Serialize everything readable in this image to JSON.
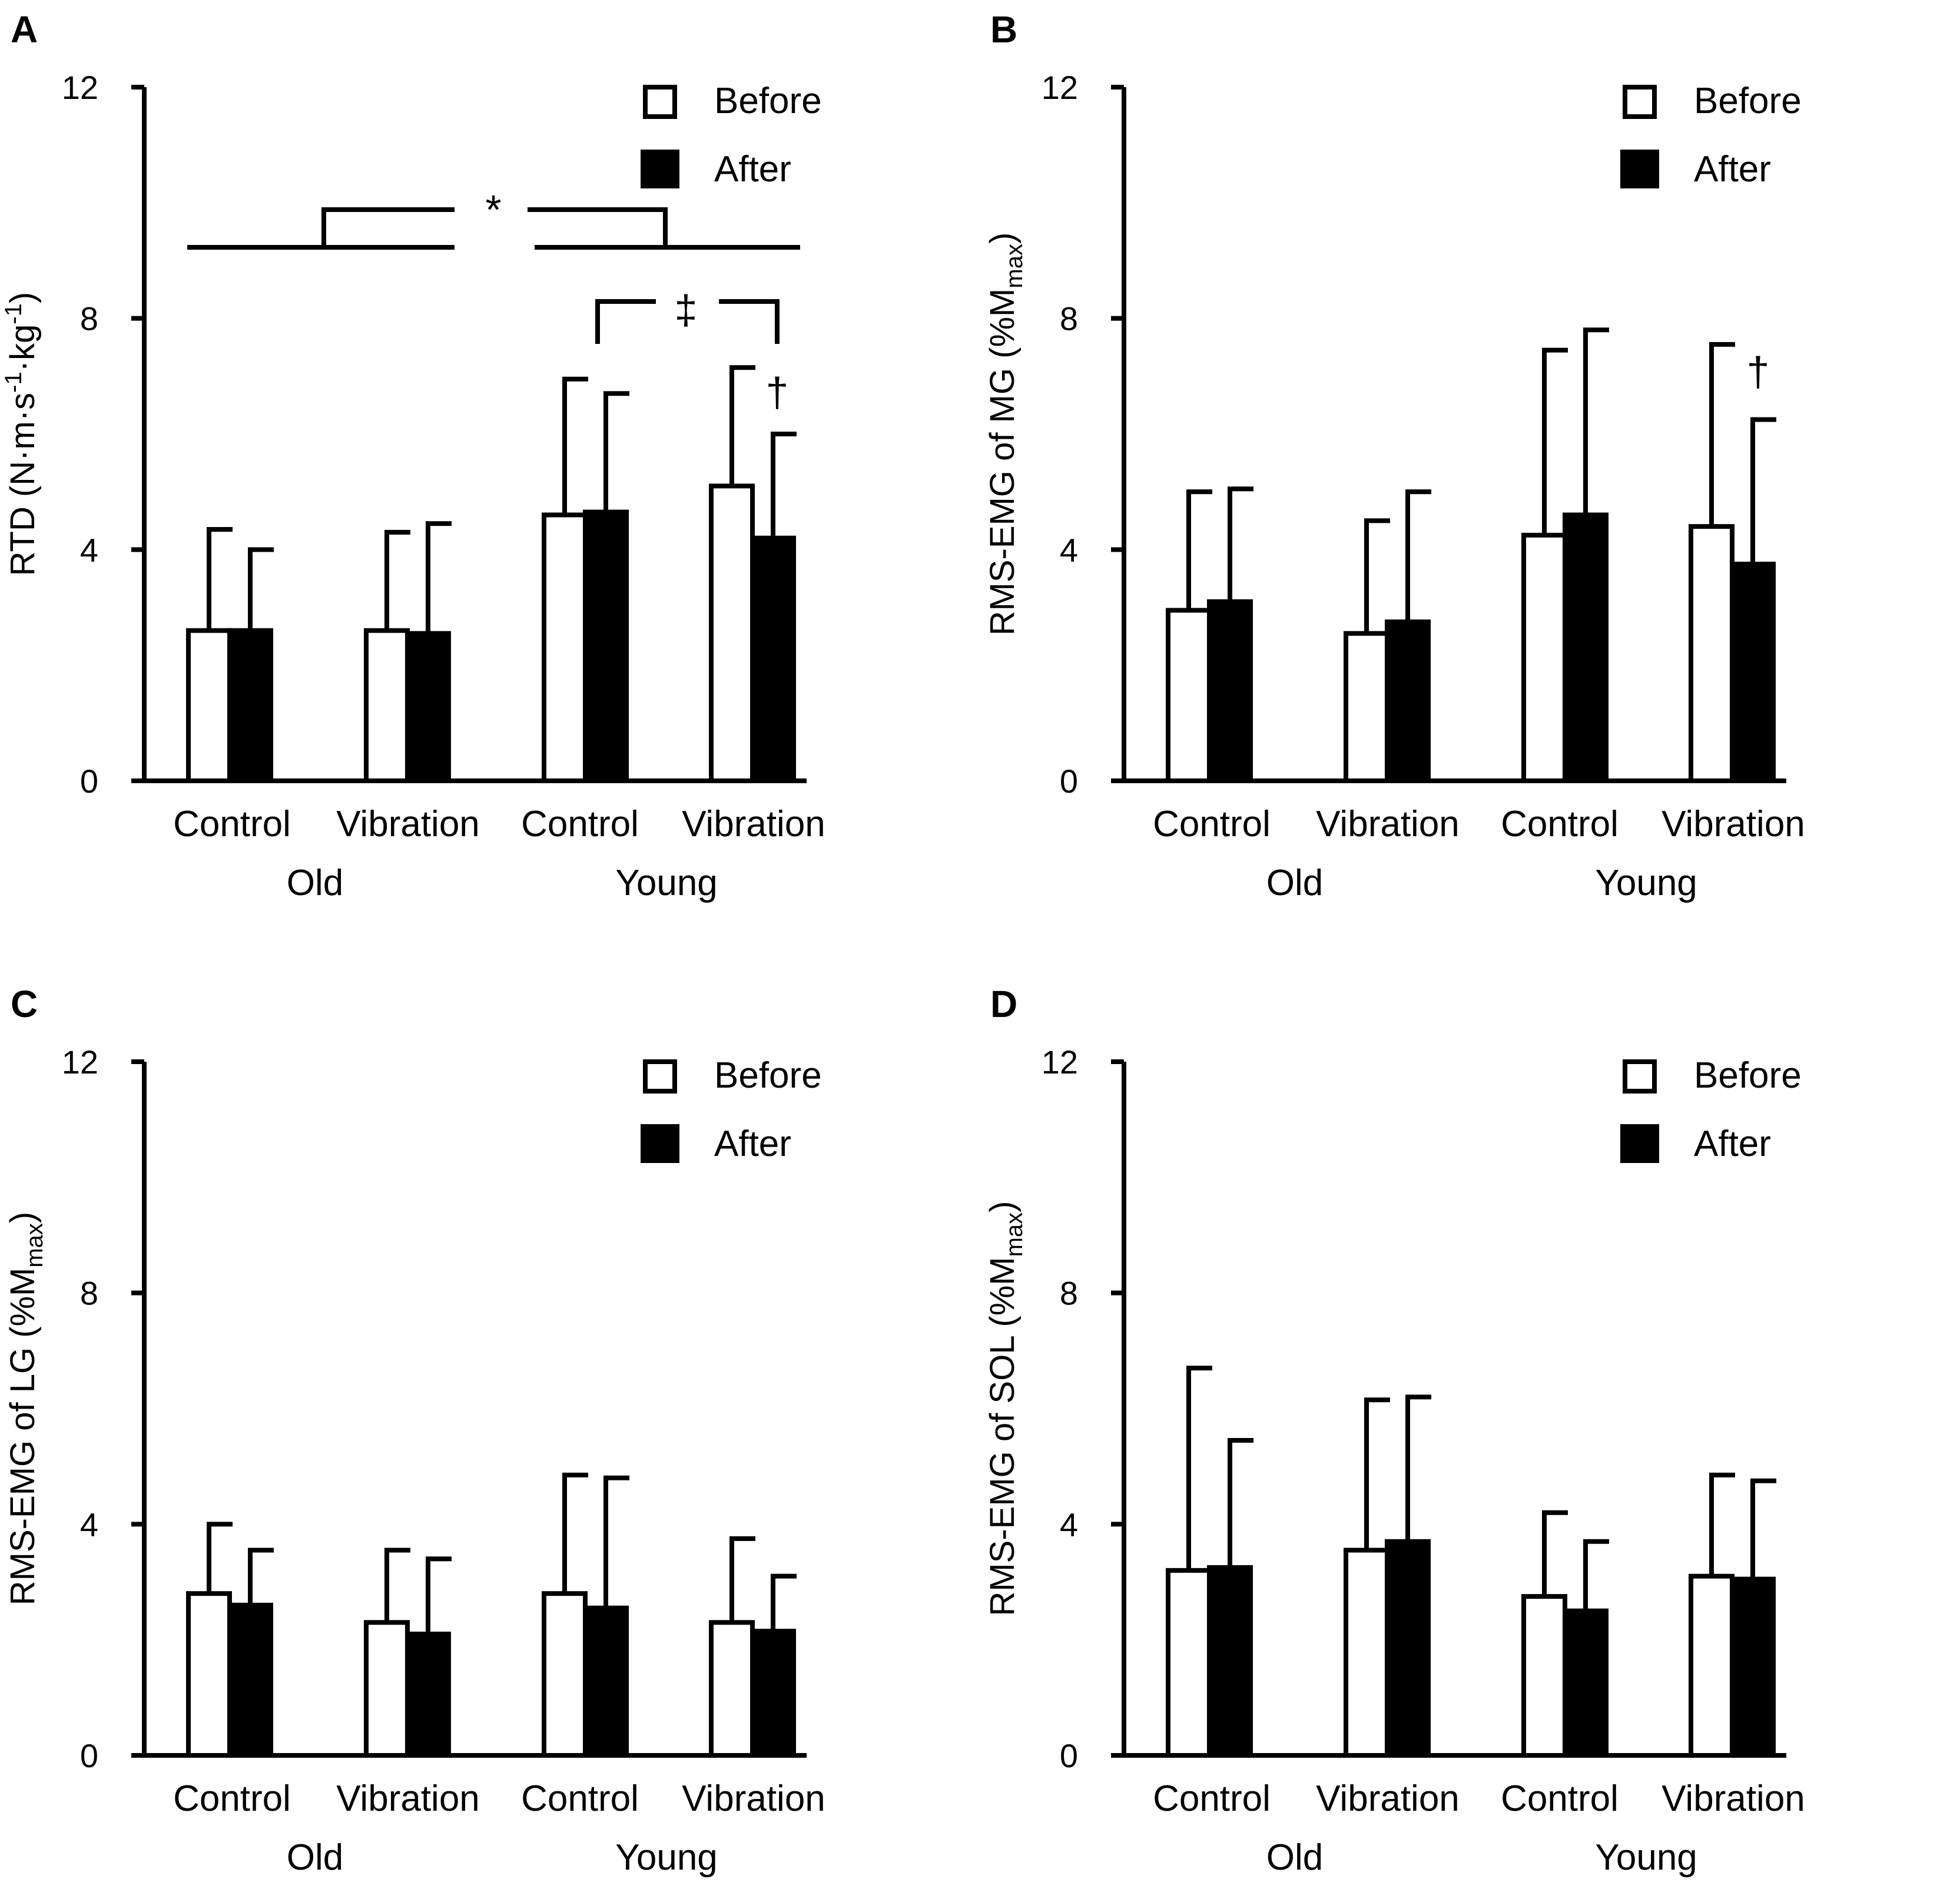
{
  "figure_title": "",
  "legend": {
    "before": "Before",
    "after": "After"
  },
  "colors": {
    "before": "#ffffff",
    "after": "#000000",
    "stroke": "#000000"
  },
  "chart_data": [
    {
      "panel": "A",
      "type": "bar",
      "ylabel_main": "RTD (N·m·s",
      "ylabel_sup1": "-1",
      "ylabel_mid": "·kg",
      "ylabel_sup2": "-1",
      "ylabel_end": ")",
      "ylim": [
        0,
        12
      ],
      "yticks": [
        "0",
        "4",
        "8",
        "12"
      ],
      "categories": [
        "Control",
        "Vibration",
        "Control",
        "Vibration"
      ],
      "groups": [
        "Old",
        "Young"
      ],
      "series": [
        {
          "name": "Before",
          "values": [
            2.6,
            2.6,
            4.6,
            5.1
          ],
          "errors": [
            1.75,
            1.7,
            2.35,
            2.05
          ]
        },
        {
          "name": "After",
          "values": [
            2.6,
            2.55,
            4.65,
            4.2
          ],
          "errors": [
            1.4,
            1.9,
            2.05,
            1.8
          ]
        }
      ],
      "annotations": {
        "star": "*",
        "dagger_double": "‡",
        "dagger": "†"
      }
    },
    {
      "panel": "B",
      "type": "bar",
      "ylabel_main": "RMS-EMG of MG (%M",
      "ylabel_sub": "max",
      "ylabel_end": ")",
      "ylim": [
        0,
        12
      ],
      "yticks": [
        "0",
        "4",
        "8",
        "12"
      ],
      "categories": [
        "Control",
        "Vibration",
        "Control",
        "Vibration"
      ],
      "groups": [
        "Old",
        "Young"
      ],
      "series": [
        {
          "name": "Before",
          "values": [
            2.95,
            2.55,
            4.25,
            4.4
          ],
          "errors": [
            2.05,
            1.95,
            3.2,
            3.15
          ]
        },
        {
          "name": "After",
          "values": [
            3.1,
            2.75,
            4.6,
            3.75
          ],
          "errors": [
            1.95,
            2.25,
            3.2,
            2.5
          ]
        }
      ],
      "annotations": {
        "dagger": "†"
      }
    },
    {
      "panel": "C",
      "type": "bar",
      "ylabel_main": "RMS-EMG of LG (%M",
      "ylabel_sub": "max",
      "ylabel_end": ")",
      "ylim": [
        0,
        12
      ],
      "yticks": [
        "0",
        "4",
        "8",
        "12"
      ],
      "categories": [
        "Control",
        "Vibration",
        "Control",
        "Vibration"
      ],
      "groups": [
        "Old",
        "Young"
      ],
      "series": [
        {
          "name": "Before",
          "values": [
            2.8,
            2.3,
            2.8,
            2.3
          ],
          "errors": [
            1.2,
            1.25,
            2.05,
            1.45
          ]
        },
        {
          "name": "After",
          "values": [
            2.6,
            2.1,
            2.55,
            2.15
          ],
          "errors": [
            0.95,
            1.3,
            2.25,
            0.95
          ]
        }
      ]
    },
    {
      "panel": "D",
      "type": "bar",
      "ylabel_main": "RMS-EMG of SOL (%M",
      "ylabel_sub": "max",
      "ylabel_end": ")",
      "ylim": [
        0,
        12
      ],
      "yticks": [
        "0",
        "4",
        "8",
        "12"
      ],
      "categories": [
        "Control",
        "Vibration",
        "Control",
        "Vibration"
      ],
      "groups": [
        "Old",
        "Young"
      ],
      "series": [
        {
          "name": "Before",
          "values": [
            3.2,
            3.55,
            2.75,
            3.1
          ],
          "errors": [
            3.5,
            2.6,
            1.45,
            1.75
          ]
        },
        {
          "name": "After",
          "values": [
            3.25,
            3.7,
            2.5,
            3.05
          ],
          "errors": [
            2.2,
            2.5,
            1.2,
            1.7
          ]
        }
      ]
    }
  ]
}
